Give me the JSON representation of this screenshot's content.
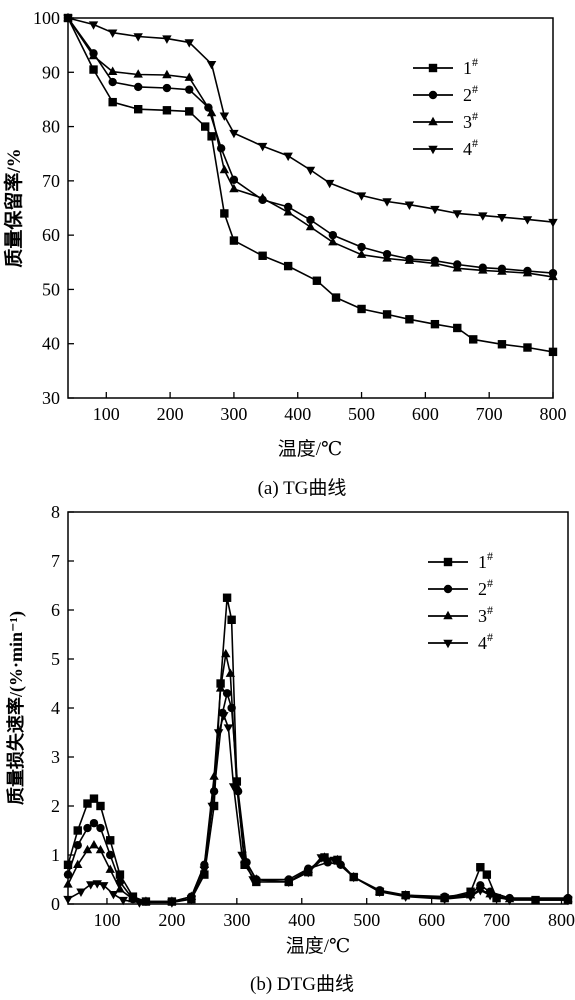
{
  "chart_data": [
    {
      "type": "line",
      "caption": "(a) TG曲线",
      "xlabel": "温度/℃",
      "ylabel": "质量保留率/%",
      "xlim": [
        40,
        800
      ],
      "ylim": [
        30,
        100
      ],
      "xticks": [
        100,
        200,
        300,
        400,
        500,
        600,
        700,
        800
      ],
      "yticks": [
        30,
        40,
        50,
        60,
        70,
        80,
        90,
        100
      ],
      "legend_position": "top-right",
      "legend": [
        "1#",
        "2#",
        "3#",
        "4#"
      ],
      "series": [
        {
          "name": "1#",
          "marker": "square",
          "points": [
            [
              40,
              100
            ],
            [
              80,
              90.5
            ],
            [
              110,
              84.5
            ],
            [
              150,
              83.2
            ],
            [
              195,
              83.0
            ],
            [
              230,
              82.8
            ],
            [
              255,
              80
            ],
            [
              265,
              78.2
            ],
            [
              285,
              64
            ],
            [
              300,
              59
            ],
            [
              345,
              56.2
            ],
            [
              385,
              54.3
            ],
            [
              430,
              51.6
            ],
            [
              460,
              48.5
            ],
            [
              500,
              46.4
            ],
            [
              540,
              45.4
            ],
            [
              575,
              44.5
            ],
            [
              615,
              43.6
            ],
            [
              650,
              42.9
            ],
            [
              675,
              40.8
            ],
            [
              720,
              39.9
            ],
            [
              760,
              39.3
            ],
            [
              800,
              38.5
            ]
          ]
        },
        {
          "name": "2#",
          "marker": "circle",
          "points": [
            [
              40,
              100
            ],
            [
              80,
              93.5
            ],
            [
              110,
              88.2
            ],
            [
              150,
              87.3
            ],
            [
              195,
              87.1
            ],
            [
              230,
              86.8
            ],
            [
              260,
              83.5
            ],
            [
              280,
              76
            ],
            [
              300,
              70.2
            ],
            [
              345,
              66.5
            ],
            [
              385,
              65.2
            ],
            [
              420,
              62.8
            ],
            [
              455,
              60
            ],
            [
              500,
              57.8
            ],
            [
              540,
              56.5
            ],
            [
              575,
              55.6
            ],
            [
              615,
              55.3
            ],
            [
              650,
              54.6
            ],
            [
              690,
              54
            ],
            [
              720,
              53.8
            ],
            [
              760,
              53.4
            ],
            [
              800,
              53
            ]
          ]
        },
        {
          "name": "3#",
          "marker": "triangle-up",
          "points": [
            [
              40,
              100
            ],
            [
              80,
              93
            ],
            [
              110,
              90.1
            ],
            [
              150,
              89.6
            ],
            [
              195,
              89.5
            ],
            [
              230,
              89.0
            ],
            [
              265,
              82.5
            ],
            [
              285,
              72
            ],
            [
              300,
              68.5
            ],
            [
              345,
              66.8
            ],
            [
              385,
              64.2
            ],
            [
              420,
              61.5
            ],
            [
              455,
              58.7
            ],
            [
              500,
              56.4
            ],
            [
              540,
              55.7
            ],
            [
              575,
              55.3
            ],
            [
              615,
              54.8
            ],
            [
              650,
              53.9
            ],
            [
              690,
              53.5
            ],
            [
              720,
              53.3
            ],
            [
              760,
              53
            ],
            [
              800,
              52.3
            ]
          ]
        },
        {
          "name": "4#",
          "marker": "triangle-down",
          "points": [
            [
              40,
              100
            ],
            [
              80,
              98.8
            ],
            [
              110,
              97.3
            ],
            [
              150,
              96.6
            ],
            [
              195,
              96.2
            ],
            [
              230,
              95.5
            ],
            [
              265,
              91.5
            ],
            [
              285,
              82
            ],
            [
              300,
              78.8
            ],
            [
              345,
              76.4
            ],
            [
              385,
              74.6
            ],
            [
              420,
              72
            ],
            [
              450,
              69.6
            ],
            [
              500,
              67.3
            ],
            [
              540,
              66.2
            ],
            [
              575,
              65.6
            ],
            [
              615,
              64.8
            ],
            [
              650,
              64
            ],
            [
              690,
              63.6
            ],
            [
              720,
              63.3
            ],
            [
              760,
              62.9
            ],
            [
              800,
              62.4
            ]
          ]
        }
      ]
    },
    {
      "type": "line",
      "caption": "(b) DTG曲线",
      "xlabel": "温度/℃",
      "ylabel": "质量损失速率/(%·min⁻¹)",
      "xlim": [
        40,
        810
      ],
      "ylim": [
        0,
        8
      ],
      "xticks": [
        100,
        200,
        300,
        400,
        500,
        600,
        700,
        800
      ],
      "yticks": [
        0,
        1,
        2,
        3,
        4,
        5,
        6,
        7,
        8
      ],
      "legend_position": "top-right",
      "legend": [
        "1#",
        "2#",
        "3#",
        "4#"
      ],
      "series": [
        {
          "name": "1#",
          "marker": "square",
          "points": [
            [
              40,
              0.8
            ],
            [
              55,
              1.5
            ],
            [
              70,
              2.05
            ],
            [
              80,
              2.15
            ],
            [
              90,
              2.0
            ],
            [
              105,
              1.3
            ],
            [
              120,
              0.6
            ],
            [
              140,
              0.15
            ],
            [
              160,
              0.05
            ],
            [
              200,
              0.05
            ],
            [
              230,
              0.1
            ],
            [
              250,
              0.6
            ],
            [
              265,
              2.0
            ],
            [
              275,
              4.5
            ],
            [
              285,
              6.25
            ],
            [
              292,
              5.8
            ],
            [
              300,
              2.5
            ],
            [
              312,
              0.8
            ],
            [
              330,
              0.45
            ],
            [
              380,
              0.45
            ],
            [
              410,
              0.65
            ],
            [
              435,
              0.95
            ],
            [
              455,
              0.9
            ],
            [
              480,
              0.55
            ],
            [
              520,
              0.25
            ],
            [
              560,
              0.18
            ],
            [
              620,
              0.12
            ],
            [
              660,
              0.25
            ],
            [
              675,
              0.75
            ],
            [
              685,
              0.6
            ],
            [
              700,
              0.12
            ],
            [
              760,
              0.08
            ],
            [
              810,
              0.08
            ]
          ]
        },
        {
          "name": "2#",
          "marker": "circle",
          "points": [
            [
              40,
              0.6
            ],
            [
              55,
              1.2
            ],
            [
              70,
              1.55
            ],
            [
              80,
              1.65
            ],
            [
              90,
              1.55
            ],
            [
              105,
              1.0
            ],
            [
              120,
              0.45
            ],
            [
              140,
              0.1
            ],
            [
              160,
              0.05
            ],
            [
              200,
              0.05
            ],
            [
              230,
              0.15
            ],
            [
              250,
              0.8
            ],
            [
              265,
              2.3
            ],
            [
              278,
              3.9
            ],
            [
              285,
              4.3
            ],
            [
              292,
              4.0
            ],
            [
              302,
              2.3
            ],
            [
              315,
              0.85
            ],
            [
              330,
              0.5
            ],
            [
              380,
              0.5
            ],
            [
              410,
              0.72
            ],
            [
              440,
              0.85
            ],
            [
              460,
              0.8
            ],
            [
              480,
              0.55
            ],
            [
              520,
              0.28
            ],
            [
              560,
              0.18
            ],
            [
              620,
              0.15
            ],
            [
              660,
              0.2
            ],
            [
              675,
              0.38
            ],
            [
              690,
              0.25
            ],
            [
              720,
              0.12
            ],
            [
              810,
              0.12
            ]
          ]
        },
        {
          "name": "3#",
          "marker": "triangle-up",
          "points": [
            [
              40,
              0.4
            ],
            [
              55,
              0.8
            ],
            [
              70,
              1.1
            ],
            [
              80,
              1.2
            ],
            [
              90,
              1.1
            ],
            [
              105,
              0.7
            ],
            [
              120,
              0.3
            ],
            [
              140,
              0.1
            ],
            [
              160,
              0.05
            ],
            [
              200,
              0.05
            ],
            [
              230,
              0.15
            ],
            [
              250,
              0.8
            ],
            [
              265,
              2.6
            ],
            [
              275,
              4.4
            ],
            [
              283,
              5.1
            ],
            [
              290,
              4.7
            ],
            [
              300,
              2.4
            ],
            [
              312,
              0.9
            ],
            [
              330,
              0.5
            ],
            [
              380,
              0.45
            ],
            [
              410,
              0.7
            ],
            [
              435,
              0.95
            ],
            [
              455,
              0.9
            ],
            [
              480,
              0.55
            ],
            [
              520,
              0.25
            ],
            [
              560,
              0.18
            ],
            [
              620,
              0.12
            ],
            [
              660,
              0.18
            ],
            [
              675,
              0.3
            ],
            [
              690,
              0.2
            ],
            [
              720,
              0.1
            ],
            [
              810,
              0.1
            ]
          ]
        },
        {
          "name": "4#",
          "marker": "triangle-down",
          "points": [
            [
              40,
              0.1
            ],
            [
              60,
              0.25
            ],
            [
              75,
              0.4
            ],
            [
              85,
              0.42
            ],
            [
              95,
              0.38
            ],
            [
              110,
              0.2
            ],
            [
              125,
              0.08
            ],
            [
              150,
              0.03
            ],
            [
              200,
              0.03
            ],
            [
              230,
              0.1
            ],
            [
              250,
              0.7
            ],
            [
              262,
              2.0
            ],
            [
              272,
              3.5
            ],
            [
              280,
              3.85
            ],
            [
              287,
              3.6
            ],
            [
              295,
              2.4
            ],
            [
              308,
              1.0
            ],
            [
              325,
              0.5
            ],
            [
              380,
              0.45
            ],
            [
              410,
              0.65
            ],
            [
              430,
              0.95
            ],
            [
              450,
              0.9
            ],
            [
              480,
              0.55
            ],
            [
              520,
              0.25
            ],
            [
              560,
              0.15
            ],
            [
              620,
              0.1
            ],
            [
              660,
              0.15
            ],
            [
              675,
              0.28
            ],
            [
              690,
              0.18
            ],
            [
              720,
              0.08
            ],
            [
              810,
              0.08
            ]
          ]
        }
      ]
    }
  ]
}
